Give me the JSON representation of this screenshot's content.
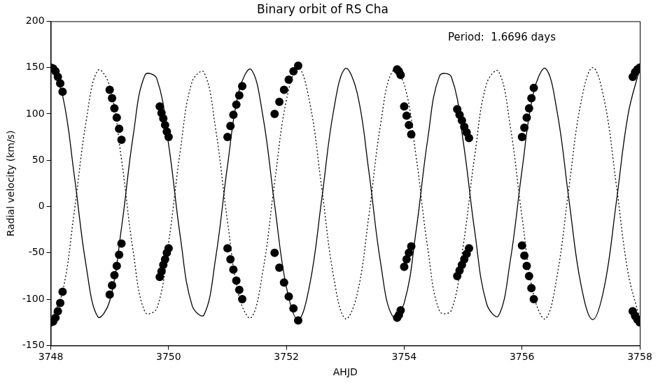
{
  "chart_data": {
    "type": "line",
    "title": "Binary orbit of RS Cha",
    "annotation": "Period:  1.6696 days",
    "x_label": "AHJD",
    "y_label": "Radial velocity (km/s)",
    "xlim": [
      3748,
      3758
    ],
    "xticks": [
      3748,
      3750,
      3752,
      3754,
      3756,
      3758
    ],
    "ylim": [
      -150,
      200
    ],
    "yticks": [
      -150,
      -100,
      -50,
      0,
      50,
      100,
      150,
      200
    ],
    "grid": false,
    "x": [
      3748.0,
      3748.2,
      3748.4,
      3748.6,
      3748.8,
      3749.0,
      3749.2,
      3749.4,
      3749.6,
      3749.8,
      3750.0,
      3750.2,
      3750.4,
      3750.6,
      3750.8,
      3751.0,
      3751.2,
      3751.4,
      3751.6,
      3751.8,
      3752.0,
      3752.2,
      3752.4,
      3752.6,
      3752.8,
      3753.0,
      3753.2,
      3753.4,
      3753.6,
      3753.8,
      3754.0,
      3754.2,
      3754.4,
      3754.6,
      3754.8,
      3755.0,
      3755.2,
      3755.4,
      3755.6,
      3755.8,
      3756.0,
      3756.2,
      3756.4,
      3756.6,
      3756.8,
      3757.0,
      3757.2,
      3757.4,
      3757.6,
      3757.8,
      3758.0
    ],
    "series": [
      {
        "type": "line",
        "color": "#000000",
        "line_style": "solid",
        "marker": "none",
        "values": [
          150,
          120,
          33,
          -64,
          -119,
          -102,
          -23,
          77,
          142,
          138,
          67,
          -33,
          -107,
          -117,
          -55,
          44,
          126,
          148,
          98,
          2,
          -87,
          -122,
          -83,
          8,
          103,
          149,
          123,
          38,
          -61,
          -118,
          -104,
          -27,
          73,
          141,
          140,
          71,
          -28,
          -105,
          -118,
          -59,
          39,
          124,
          149,
          101,
          6,
          -84,
          -122,
          -86,
          4,
          99,
          149
        ]
      },
      {
        "type": "line",
        "color": "#000000",
        "line_style": "dotted",
        "marker": "none",
        "values": [
          -122,
          -92,
          -5,
          92,
          147,
          130,
          51,
          -49,
          -114,
          -110,
          -39,
          61,
          135,
          145,
          83,
          -16,
          -98,
          -120,
          -70,
          26,
          115,
          150,
          111,
          20,
          -75,
          -121,
          -95,
          -10,
          89,
          146,
          132,
          55,
          -45,
          -113,
          -112,
          -43,
          56,
          133,
          146,
          87,
          -11,
          -96,
          -121,
          -73,
          22,
          112,
          150,
          114,
          24,
          -71,
          -121
        ]
      },
      {
        "type": "scatter",
        "color": "#000000",
        "marker": "circle",
        "x": [
          3748.0,
          3748.04,
          3748.08,
          3748.12,
          3748.16,
          3748.2,
          3748.0,
          3748.04,
          3748.08,
          3748.12,
          3748.16,
          3748.2,
          3749.0,
          3749.04,
          3749.08,
          3749.12,
          3749.16,
          3749.2,
          3749.0,
          3749.04,
          3749.08,
          3749.12,
          3749.16,
          3749.2,
          3749.85,
          3749.88,
          3749.91,
          3749.94,
          3749.97,
          3750.0,
          3749.85,
          3749.88,
          3749.91,
          3749.94,
          3749.97,
          3750.0,
          3751.0,
          3751.05,
          3751.1,
          3751.15,
          3751.2,
          3751.25,
          3751.0,
          3751.05,
          3751.1,
          3751.15,
          3751.2,
          3751.25,
          3751.8,
          3751.88,
          3751.96,
          3752.04,
          3752.12,
          3752.2,
          3751.8,
          3751.88,
          3751.96,
          3752.04,
          3752.12,
          3752.2,
          3753.88,
          3753.91,
          3753.94,
          3754.0,
          3754.04,
          3754.08,
          3754.12,
          3753.88,
          3753.91,
          3753.94,
          3754.0,
          3754.04,
          3754.08,
          3754.12,
          3754.9,
          3754.94,
          3754.98,
          3755.02,
          3755.06,
          3755.1,
          3754.9,
          3754.94,
          3754.98,
          3755.02,
          3755.06,
          3755.1,
          3756.0,
          3756.04,
          3756.08,
          3756.12,
          3756.16,
          3756.2,
          3756.0,
          3756.04,
          3756.08,
          3756.12,
          3756.16,
          3756.2,
          3757.88,
          3757.92,
          3757.96,
          3758.0,
          3757.88,
          3757.92,
          3757.96,
          3758.0
        ],
        "values": [
          150,
          149,
          146,
          140,
          133,
          124,
          -125,
          -124,
          -120,
          -113,
          -104,
          -92,
          126,
          117,
          106,
          96,
          84,
          72,
          -95,
          -85,
          -74,
          -64,
          -52,
          -40,
          108,
          101,
          95,
          88,
          81,
          75,
          -76,
          -70,
          -63,
          -57,
          -50,
          -45,
          75,
          87,
          99,
          110,
          120,
          130,
          -45,
          -57,
          -68,
          -80,
          -90,
          -100,
          100,
          113,
          126,
          137,
          146,
          152,
          -50,
          -66,
          -82,
          -97,
          -110,
          -123,
          148,
          146,
          142,
          108,
          98,
          88,
          78,
          -120,
          -117,
          -112,
          -65,
          -57,
          -50,
          -43,
          105,
          99,
          93,
          86,
          80,
          74,
          -75,
          -69,
          -63,
          -57,
          -51,
          -45,
          75,
          85,
          96,
          106,
          117,
          128,
          -42,
          -53,
          -64,
          -75,
          -88,
          -100,
          140,
          145,
          148,
          150,
          -113,
          -118,
          -122,
          -125
        ]
      }
    ]
  }
}
